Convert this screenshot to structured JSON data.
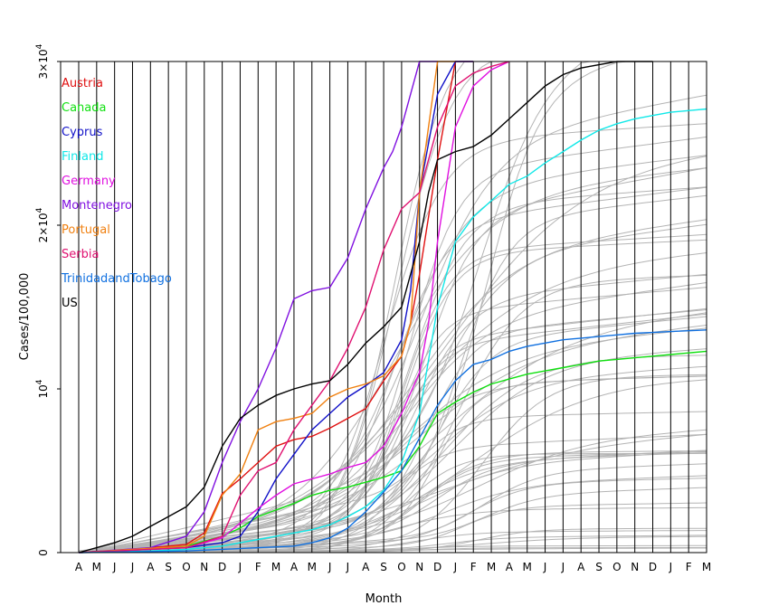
{
  "chart_data": {
    "type": "line",
    "xlabel": "Month",
    "ylabel": "Cases/100,000",
    "x_ticks": [
      "A",
      "M",
      "J",
      "J",
      "A",
      "S",
      "O",
      "N",
      "D",
      "J",
      "F",
      "M",
      "A",
      "M",
      "J",
      "J",
      "A",
      "S",
      "O",
      "N",
      "D",
      "J",
      "F",
      "M",
      "A",
      "M",
      "J",
      "J",
      "A",
      "S",
      "O",
      "N",
      "D",
      "J",
      "F",
      "M"
    ],
    "y_ticks": [
      {
        "value": 0,
        "label": "0",
        "exp": ""
      },
      {
        "value": 10000,
        "label": "10",
        "exp": "4"
      },
      {
        "value": 20000,
        "label": "2×10",
        "exp": "4"
      },
      {
        "value": 30000,
        "label": "3×10",
        "exp": "4"
      }
    ],
    "ylim": [
      0,
      30000
    ],
    "xlim": [
      0,
      35
    ],
    "legend_position": "top-left",
    "series": [
      {
        "name": "Austria",
        "color": "#e01010",
        "x": [
          0,
          3,
          6,
          7,
          8,
          9,
          10,
          11,
          12,
          13,
          14,
          15,
          16,
          17,
          18,
          18.5,
          19,
          20,
          21,
          22
        ],
        "y": [
          0,
          200,
          500,
          1200,
          3600,
          4500,
          5500,
          6500,
          6900,
          7100,
          7600,
          8200,
          8800,
          10500,
          12000,
          14000,
          17000,
          24000,
          30000,
          31000
        ]
      },
      {
        "name": "Canada",
        "color": "#10e010",
        "x": [
          0,
          4,
          6,
          8,
          9,
          10,
          11,
          12,
          13,
          14,
          15,
          16,
          17,
          18,
          19,
          20,
          21,
          22,
          23,
          24,
          25,
          26,
          27,
          28,
          29,
          30,
          31,
          32,
          33,
          34,
          35
        ],
        "y": [
          0,
          200,
          400,
          1000,
          1500,
          2200,
          2600,
          3000,
          3500,
          3800,
          4000,
          4300,
          4600,
          5000,
          6500,
          8500,
          9200,
          9800,
          10300,
          10600,
          10900,
          11100,
          11300,
          11500,
          11700,
          11800,
          11900,
          12000,
          12100,
          12200,
          12300
        ]
      },
      {
        "name": "Cyprus",
        "color": "#1010c8",
        "x": [
          0,
          6,
          8,
          9,
          10,
          11,
          12,
          13,
          14,
          15,
          16,
          17,
          18,
          18.5,
          19,
          20,
          21,
          22
        ],
        "y": [
          0,
          300,
          600,
          1000,
          2500,
          4500,
          6000,
          7500,
          8500,
          9500,
          10200,
          11000,
          13000,
          16000,
          22000,
          28000,
          32000,
          33000
        ]
      },
      {
        "name": "Finland",
        "color": "#10e8e8",
        "x": [
          0,
          4,
          6,
          8,
          9,
          10,
          11,
          12,
          13,
          14,
          15,
          16,
          17,
          18,
          19,
          20,
          21,
          22,
          23,
          24,
          25,
          26,
          27,
          28,
          29,
          30,
          31,
          32,
          33,
          34,
          35
        ],
        "y": [
          0,
          100,
          200,
          400,
          600,
          800,
          1000,
          1200,
          1400,
          1700,
          2200,
          2800,
          3800,
          5500,
          8500,
          15000,
          19000,
          20500,
          21500,
          22500,
          23000,
          23800,
          24500,
          25200,
          25800,
          26200,
          26500,
          26700,
          26900,
          27000,
          27100
        ]
      },
      {
        "name": "Germany",
        "color": "#e010e0",
        "x": [
          0,
          6,
          8,
          9,
          10,
          11,
          12,
          13,
          14,
          15,
          16,
          17,
          18,
          19,
          19.5,
          20,
          21,
          22,
          23,
          24
        ],
        "y": [
          0,
          300,
          900,
          1800,
          2700,
          3500,
          4200,
          4500,
          4800,
          5200,
          5500,
          6500,
          8500,
          11000,
          14000,
          19000,
          26000,
          28500,
          29500,
          30000
        ]
      },
      {
        "name": "Montenegro",
        "color": "#8010e0",
        "x": [
          0,
          4,
          6,
          7,
          8,
          9,
          10,
          11,
          12,
          13,
          14,
          15,
          16,
          17,
          17.5,
          18,
          18.5,
          19,
          20
        ],
        "y": [
          0,
          300,
          1000,
          2500,
          5500,
          8000,
          10000,
          12500,
          15500,
          16000,
          16200,
          18000,
          21000,
          23500,
          24500,
          26000,
          28000,
          30000,
          32000
        ]
      },
      {
        "name": "Portugal",
        "color": "#f08010",
        "x": [
          0,
          6,
          7,
          8,
          9,
          10,
          11,
          12,
          13,
          14,
          15,
          16,
          17,
          18,
          18.5,
          19,
          20,
          21
        ],
        "y": [
          0,
          400,
          1000,
          3500,
          4800,
          7500,
          8000,
          8200,
          8500,
          9500,
          10000,
          10300,
          10800,
          12000,
          14000,
          22000,
          31000,
          32000
        ]
      },
      {
        "name": "Serbia",
        "color": "#e01070",
        "x": [
          0,
          6,
          8,
          9,
          10,
          11,
          12,
          13,
          14,
          15,
          16,
          17,
          18,
          19,
          20,
          21,
          22,
          23,
          24
        ],
        "y": [
          0,
          300,
          1000,
          3500,
          5000,
          5500,
          7500,
          9000,
          10500,
          12500,
          15000,
          18500,
          21000,
          22000,
          26000,
          28500,
          29300,
          29700,
          30000
        ]
      },
      {
        "name": "TrinidadandTobago",
        "color": "#1070e0",
        "x": [
          0,
          6,
          8,
          10,
          12,
          13,
          14,
          15,
          16,
          17,
          18,
          19,
          20,
          21,
          22,
          23,
          24,
          25,
          26,
          27,
          28,
          29,
          30,
          31,
          32,
          33,
          34,
          35
        ],
        "y": [
          0,
          100,
          200,
          300,
          400,
          600,
          900,
          1500,
          2500,
          3700,
          5000,
          7000,
          9000,
          10500,
          11500,
          11800,
          12300,
          12600,
          12800,
          13000,
          13100,
          13200,
          13300,
          13400,
          13450,
          13500,
          13550,
          13600
        ]
      },
      {
        "name": "US",
        "color": "#000000",
        "x": [
          0,
          1,
          2,
          3,
          4,
          5,
          6,
          7,
          8,
          9,
          10,
          11,
          12,
          13,
          14,
          15,
          16,
          17,
          18,
          19,
          19.5,
          20,
          21,
          22,
          23,
          24,
          25,
          26,
          27,
          28,
          29,
          30,
          31,
          32
        ],
        "y": [
          0,
          300,
          600,
          1000,
          1600,
          2200,
          2800,
          4000,
          6500,
          8200,
          9000,
          9600,
          10000,
          10300,
          10500,
          11500,
          12800,
          13800,
          15000,
          19000,
          22000,
          24000,
          24500,
          24800,
          25500,
          26500,
          27500,
          28500,
          29200,
          29600,
          29800,
          30000,
          30200,
          30400
        ]
      }
    ]
  }
}
